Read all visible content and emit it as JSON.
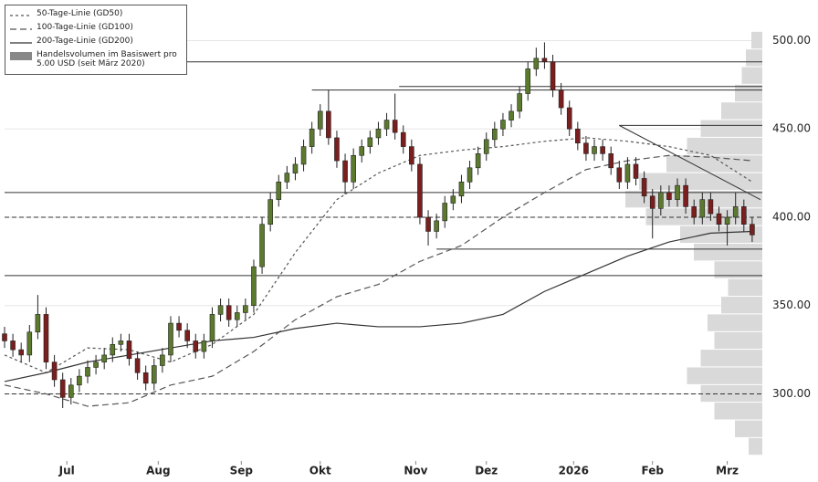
{
  "chart_data": {
    "type": "candlestick",
    "x": [
      0,
      2,
      4,
      6,
      8,
      10,
      12,
      14,
      16,
      18,
      20,
      22,
      24,
      26,
      28,
      30,
      32,
      34,
      36,
      38,
      40,
      42,
      44,
      46,
      48,
      50,
      52,
      54,
      56,
      58,
      60,
      62,
      64,
      66,
      68,
      70,
      72,
      74,
      76,
      78,
      80,
      82,
      84,
      86,
      88,
      90,
      92,
      94,
      96,
      98,
      100,
      102,
      104,
      106,
      108,
      110,
      112,
      114,
      116,
      118,
      120,
      122,
      124,
      126,
      128,
      130,
      132,
      134,
      136,
      138,
      140,
      142,
      144,
      146,
      148,
      150,
      152,
      154,
      156,
      158,
      160,
      162,
      164,
      166,
      168,
      170,
      172,
      174,
      176,
      178,
      180
    ],
    "open": [
      334,
      330,
      325,
      322,
      335,
      345,
      318,
      308,
      298,
      305,
      310,
      315,
      318,
      322,
      328,
      330,
      320,
      312,
      306,
      316,
      322,
      340,
      336,
      330,
      324,
      330,
      345,
      350,
      342,
      346,
      350,
      372,
      396,
      410,
      420,
      425,
      430,
      440,
      450,
      460,
      445,
      432,
      420,
      435,
      440,
      445,
      450,
      455,
      448,
      440,
      430,
      400,
      392,
      398,
      408,
      412,
      420,
      428,
      436,
      444,
      450,
      455,
      460,
      470,
      484,
      490,
      488,
      472,
      462,
      450,
      442,
      436,
      440,
      436,
      428,
      420,
      430,
      422,
      412,
      405,
      414,
      410,
      418,
      406,
      400,
      410,
      402,
      396,
      400,
      406,
      396
    ],
    "high": [
      338,
      334,
      329,
      339,
      356,
      349,
      322,
      312,
      309,
      314,
      319,
      322,
      326,
      332,
      334,
      334,
      324,
      316,
      320,
      326,
      344,
      344,
      340,
      334,
      334,
      349,
      354,
      354,
      350,
      354,
      376,
      400,
      414,
      424,
      429,
      434,
      444,
      454,
      464,
      472,
      449,
      436,
      439,
      444,
      449,
      454,
      459,
      470,
      452,
      444,
      434,
      404,
      402,
      412,
      416,
      424,
      432,
      440,
      448,
      454,
      459,
      464,
      474,
      488,
      496,
      499,
      492,
      476,
      466,
      454,
      446,
      444,
      444,
      440,
      432,
      434,
      434,
      426,
      416,
      418,
      418,
      422,
      422,
      410,
      414,
      414,
      406,
      404,
      414,
      410,
      400
    ],
    "low": [
      326,
      321,
      318,
      318,
      331,
      314,
      304,
      292,
      294,
      301,
      306,
      311,
      314,
      318,
      324,
      316,
      308,
      302,
      302,
      312,
      318,
      332,
      326,
      320,
      320,
      326,
      341,
      338,
      338,
      342,
      346,
      368,
      392,
      406,
      416,
      421,
      426,
      436,
      446,
      441,
      428,
      413,
      416,
      431,
      436,
      441,
      446,
      444,
      436,
      426,
      396,
      384,
      388,
      394,
      404,
      408,
      416,
      424,
      432,
      440,
      446,
      451,
      456,
      466,
      480,
      484,
      468,
      458,
      446,
      438,
      432,
      432,
      432,
      424,
      416,
      416,
      418,
      408,
      388,
      401,
      406,
      406,
      402,
      396,
      396,
      398,
      392,
      384,
      396,
      392,
      386
    ],
    "close": [
      330,
      325,
      322,
      335,
      345,
      318,
      308,
      298,
      305,
      310,
      315,
      318,
      322,
      328,
      330,
      320,
      312,
      306,
      316,
      322,
      340,
      336,
      330,
      324,
      330,
      345,
      350,
      342,
      346,
      350,
      372,
      396,
      410,
      420,
      425,
      430,
      440,
      450,
      460,
      445,
      432,
      420,
      435,
      440,
      445,
      450,
      455,
      448,
      440,
      430,
      400,
      392,
      398,
      408,
      412,
      420,
      428,
      436,
      444,
      450,
      455,
      460,
      470,
      484,
      490,
      488,
      472,
      462,
      450,
      442,
      436,
      440,
      436,
      428,
      420,
      430,
      422,
      412,
      405,
      414,
      410,
      418,
      406,
      400,
      410,
      402,
      396,
      400,
      406,
      396,
      390
    ],
    "up_color": "#5c7a2e",
    "down_color": "#7a1e1e",
    "xlim": [
      0,
      182
    ],
    "ylim": [
      262,
      523
    ],
    "xticks": [
      {
        "value": 15,
        "label": "Jul"
      },
      {
        "value": 37,
        "label": "Aug"
      },
      {
        "value": 57,
        "label": "Sep"
      },
      {
        "value": 76,
        "label": "Okt"
      },
      {
        "value": 99,
        "label": "Nov"
      },
      {
        "value": 116,
        "label": "Dez"
      },
      {
        "value": 137,
        "label": "2026"
      },
      {
        "value": 156,
        "label": "Feb"
      },
      {
        "value": 174,
        "label": "Mrz"
      }
    ],
    "yticks": [
      {
        "value": 300,
        "label": "300.00"
      },
      {
        "value": 350,
        "label": "350.00"
      },
      {
        "value": 400,
        "label": "400.00"
      },
      {
        "value": 450,
        "label": "450.00"
      },
      {
        "value": 500,
        "label": "500.00"
      }
    ],
    "grid": true,
    "series": [
      {
        "name": "50-Tage-Linie (GD50)",
        "color": "#555555",
        "dash": "3,3",
        "x": [
          0,
          10,
          20,
          30,
          40,
          50,
          60,
          70,
          80,
          90,
          100,
          110,
          120,
          130,
          140,
          150,
          160,
          170,
          180
        ],
        "values": [
          322,
          312,
          326,
          325,
          318,
          328,
          345,
          380,
          410,
          425,
          435,
          438,
          440,
          443,
          445,
          443,
          440,
          435,
          420
        ]
      },
      {
        "name": "100-Tage-Linie (GD100)",
        "color": "#555555",
        "dash": "7,4",
        "x": [
          0,
          10,
          20,
          30,
          40,
          50,
          60,
          70,
          80,
          90,
          100,
          110,
          120,
          130,
          140,
          150,
          160,
          170,
          180
        ],
        "values": [
          305,
          300,
          293,
          295,
          305,
          310,
          324,
          342,
          355,
          362,
          375,
          384,
          400,
          414,
          427,
          432,
          435,
          434,
          432
        ]
      },
      {
        "name": "200-Tage-Linie (GD200)",
        "color": "#333333",
        "dash": "",
        "x": [
          0,
          10,
          20,
          30,
          40,
          50,
          60,
          70,
          80,
          90,
          100,
          110,
          120,
          130,
          140,
          150,
          160,
          170,
          180
        ],
        "values": [
          307,
          312,
          318,
          322,
          326,
          330,
          332,
          337,
          340,
          338,
          338,
          340,
          345,
          358,
          368,
          378,
          386,
          391,
          392
        ]
      }
    ],
    "volume_profile": {
      "name": "Handelsvolumen im Basiswert pro 5.00 USD (seit März 2020)",
      "color": "#d9d9d9",
      "bins": [
        265,
        275,
        285,
        295,
        305,
        315,
        325,
        335,
        345,
        355,
        365,
        375,
        385,
        395,
        405,
        415,
        425,
        435,
        445,
        455,
        465,
        475,
        485,
        495,
        505
      ],
      "values": [
        10,
        20,
        35,
        45,
        55,
        45,
        35,
        40,
        30,
        25,
        35,
        50,
        60,
        85,
        100,
        90,
        70,
        55,
        45,
        30,
        20,
        15,
        12,
        8
      ]
    },
    "levels": [
      {
        "value": 488,
        "from": 0,
        "dash": false
      },
      {
        "value": 472,
        "from": 74,
        "dash": false
      },
      {
        "value": 474,
        "from": 95,
        "dash": false
      },
      {
        "value": 452,
        "from": 148,
        "dash": false
      },
      {
        "value": 414,
        "from": 0,
        "dash": false
      },
      {
        "value": 382,
        "from": 104,
        "dash": false
      },
      {
        "value": 367,
        "from": 0,
        "dash": false
      },
      {
        "value": 400,
        "from": 0,
        "dash": true
      },
      {
        "value": 300,
        "from": 0,
        "dash": true
      }
    ],
    "trendline": {
      "x": [
        148,
        182
      ],
      "values": [
        452,
        410
      ]
    }
  }
}
